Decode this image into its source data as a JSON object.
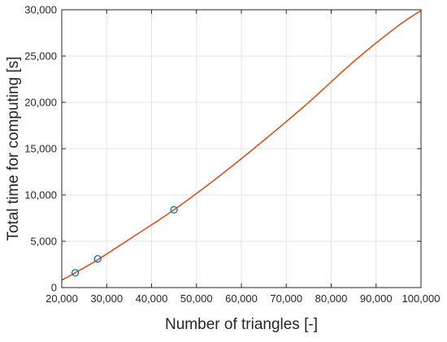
{
  "chart_data": {
    "type": "line",
    "xlabel": "Number of triangles [-]",
    "ylabel": "Total time for computing [s]",
    "xlim": [
      20000,
      100000
    ],
    "ylim": [
      0,
      30000
    ],
    "x_ticks": [
      20000,
      30000,
      40000,
      50000,
      60000,
      70000,
      80000,
      90000,
      100000
    ],
    "x_tick_labels": [
      "20,000",
      "30,000",
      "40,000",
      "50,000",
      "60,000",
      "70,000",
      "80,000",
      "90,000",
      "100,000"
    ],
    "y_ticks": [
      0,
      5000,
      10000,
      15000,
      20000,
      25000,
      30000
    ],
    "y_tick_labels": [
      "0",
      "5,000",
      "10,000",
      "15,000",
      "20,000",
      "25,000",
      "30,000"
    ],
    "grid": true,
    "series": [
      {
        "kind": "markers",
        "marker": "circle",
        "color": "#0072BD",
        "x": [
          23000,
          28000,
          45000
        ],
        "y": [
          1600,
          3100,
          8400
        ]
      },
      {
        "kind": "line",
        "color": "#D95319",
        "x": [
          20000,
          23000,
          28000,
          35000,
          45000,
          55000,
          65000,
          75000,
          85000,
          95000,
          100000
        ],
        "y": [
          800,
          1600,
          3000,
          5200,
          8400,
          12000,
          15900,
          20000,
          24400,
          28300,
          29900
        ]
      }
    ]
  }
}
